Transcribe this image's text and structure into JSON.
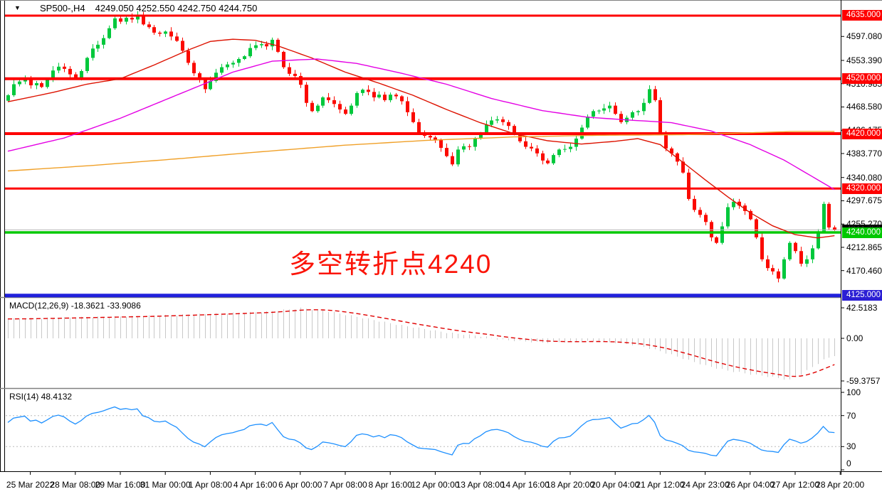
{
  "header": {
    "dropdown_icon": "▼",
    "symbol_period": "SP500-,H4",
    "ohlc": "4249.050 4252.550 4242.750 4244.750"
  },
  "annotation": {
    "text": "多空转折点4240",
    "color": "#fb1408"
  },
  "colors": {
    "candle_up": "#00c83c",
    "candle_down": "#fb0a00",
    "ma_fast": "#dd1200",
    "ma_mid": "#e400e4",
    "ma_slow": "#f0a028",
    "hline_red": "#fe0000",
    "hline_green": "#00c800",
    "hline_blue": "#2121dc",
    "current_price_line": "#b8b8b8",
    "macd_histogram": "#c8c8c8",
    "macd_signal": "#e00000",
    "rsi_line": "#1e90ff",
    "rsi_level": "#bbbbbb",
    "frame": "#000000",
    "separator": "#808080"
  },
  "price_axis": {
    "ticks": [
      {
        "label": "4597.080",
        "price": 4597.08
      },
      {
        "label": "4553.390",
        "price": 4553.39
      },
      {
        "label": "4510.985",
        "price": 4510.985
      },
      {
        "label": "4468.580",
        "price": 4468.58
      },
      {
        "label": "4426.175",
        "price": 4426.175
      },
      {
        "label": "4383.770",
        "price": 4383.77
      },
      {
        "label": "4340.080",
        "price": 4340.08
      },
      {
        "label": "4297.675",
        "price": 4297.675
      },
      {
        "label": "4255.270",
        "price": 4255.27
      },
      {
        "label": "4212.865",
        "price": 4212.865
      },
      {
        "label": "4170.460",
        "price": 4170.46
      }
    ],
    "badges": [
      {
        "label": "4635.000",
        "price": 4635,
        "bg": "#fe0000",
        "fg": "#ffffff"
      },
      {
        "label": "4520.000",
        "price": 4520,
        "bg": "#fe0000",
        "fg": "#ffffff"
      },
      {
        "label": "4420.000",
        "price": 4420,
        "bg": "#fe0000",
        "fg": "#ffffff"
      },
      {
        "label": "4320.000",
        "price": 4320,
        "bg": "#fe0000",
        "fg": "#ffffff"
      },
      {
        "label": "4244.750",
        "price": 4244.75,
        "bg": "#000000",
        "fg": "#262626"
      },
      {
        "label": "4240.000",
        "price": 4240,
        "bg": "#00c800",
        "fg": "#ffffff"
      },
      {
        "label": "4125.000",
        "price": 4125,
        "bg": "#2b1fd4",
        "fg": "#ffffff"
      }
    ]
  },
  "hlines": [
    {
      "price": 4635,
      "color": "#fe0000",
      "w": 3
    },
    {
      "price": 4520,
      "color": "#fe0000",
      "w": 4
    },
    {
      "price": 4420,
      "color": "#fe0000",
      "w": 4
    },
    {
      "price": 4320,
      "color": "#fe0000",
      "w": 3
    },
    {
      "price": 4240,
      "color": "#00c800",
      "w": 3.5
    },
    {
      "price": 4125,
      "color": "#2121dc",
      "w": 5
    },
    {
      "price": 4244.75,
      "color": "#b8b8b8",
      "w": 1
    }
  ],
  "time_axis": {
    "labels": [
      "25 Mar 2022",
      "28 Mar 08:00",
      "29 Mar 16:00",
      "31 Mar 00:00",
      "1 Apr 08:00",
      "4 Apr 16:00",
      "6 Apr 00:00",
      "7 Apr 08:00",
      "8 Apr 16:00",
      "12 Apr 00:00",
      "13 Apr 08:00",
      "14 Apr 16:00",
      "18 Apr 20:00",
      "20 Apr 04:00",
      "21 Apr 12:00",
      "24 Apr 23:00",
      "26 Apr 04:00",
      "27 Apr 12:00",
      "28 Apr 20:00"
    ]
  },
  "indicators": {
    "macd": {
      "label": "MACD(12,26,9) -18.3621 -33.9086",
      "axis": [
        {
          "label": "42.5183",
          "v": 42.5183
        },
        {
          "label": "0.00",
          "v": 0
        },
        {
          "label": "-59.3757",
          "v": -59.3757
        }
      ],
      "values_shown": {
        "macd": -18.3621,
        "signal": -33.9086
      }
    },
    "rsi": {
      "label": "RSI(14) 48.4132",
      "axis": [
        {
          "label": "100",
          "v": 100
        },
        {
          "label": "70",
          "v": 70
        },
        {
          "label": "30",
          "v": 30
        },
        {
          "label": "0",
          "v": 0
        }
      ],
      "levels": [
        70,
        30
      ],
      "value_shown": 48.4132
    }
  },
  "chart_data": {
    "type": "candlestick",
    "symbol": "SP500-",
    "timeframe": "H4",
    "current_price": 4244.75,
    "closes": [
      4490,
      4510,
      4515,
      4520,
      4508,
      4512,
      4505,
      4518,
      4535,
      4542,
      4538,
      4528,
      4520,
      4534,
      4558,
      4575,
      4582,
      4594,
      4612,
      4630,
      4624,
      4631,
      4628,
      4636,
      4619,
      4614,
      4604,
      4602,
      4606,
      4597,
      4589,
      4571,
      4549,
      4530,
      4519,
      4501,
      4516,
      4531,
      4541,
      4546,
      4549,
      4556,
      4561,
      4576,
      4581,
      4583,
      4579,
      4591,
      4569,
      4541,
      4529,
      4525,
      4509,
      4476,
      4461,
      4471,
      4486,
      4481,
      4474,
      4464,
      4456,
      4471,
      4494,
      4500,
      4496,
      4486,
      4491,
      4481,
      4491,
      4488,
      4479,
      4459,
      4441,
      4421,
      4416,
      4413,
      4409,
      4394,
      4379,
      4364,
      4391,
      4397,
      4396,
      4411,
      4421,
      4436,
      4444,
      4446,
      4441,
      4434,
      4419,
      4406,
      4396,
      4393,
      4384,
      4371,
      4366,
      4381,
      4391,
      4392,
      4396,
      4411,
      4431,
      4451,
      4461,
      4462,
      4466,
      4471,
      4456,
      4441,
      4449,
      4459,
      4461,
      4476,
      4501,
      4481,
      4421,
      4393,
      4384,
      4369,
      4349,
      4301,
      4281,
      4272,
      4259,
      4231,
      4221,
      4251,
      4286,
      4296,
      4289,
      4279,
      4264,
      4231,
      4191,
      4175,
      4169,
      4156,
      4191,
      4221,
      4206,
      4183,
      4191,
      4211,
      4241,
      4292,
      4249.05,
      4244.75
    ],
    "rsi_warmup_closes": [
      4460,
      4450,
      4455,
      4460,
      4465,
      4461,
      4465,
      4480,
      4500,
      4510,
      4515,
      4511,
      4500,
      4490,
      4480,
      4470,
      4460,
      4456,
      4460,
      4470
    ],
    "moving_averages": [
      {
        "name": "ma-fast-red",
        "color": "#dd1200",
        "points": [
          [
            0,
            4478
          ],
          [
            8,
            4495
          ],
          [
            14,
            4510
          ],
          [
            20,
            4520
          ],
          [
            26,
            4545
          ],
          [
            32,
            4572
          ],
          [
            36,
            4588
          ],
          [
            40,
            4592
          ],
          [
            44,
            4590
          ],
          [
            48,
            4580
          ],
          [
            54,
            4558
          ],
          [
            60,
            4532
          ],
          [
            66,
            4512
          ],
          [
            72,
            4490
          ],
          [
            78,
            4464
          ],
          [
            84,
            4440
          ],
          [
            90,
            4420
          ],
          [
            96,
            4407
          ],
          [
            102,
            4401
          ],
          [
            108,
            4406
          ],
          [
            112,
            4411
          ],
          [
            116,
            4400
          ],
          [
            120,
            4368
          ],
          [
            124,
            4336
          ],
          [
            128,
            4305
          ],
          [
            132,
            4276
          ],
          [
            136,
            4252
          ],
          [
            140,
            4236
          ],
          [
            144,
            4230
          ],
          [
            147,
            4234
          ]
        ]
      },
      {
        "name": "ma-mid-magenta",
        "color": "#e400e4",
        "points": [
          [
            0,
            4388
          ],
          [
            10,
            4412
          ],
          [
            20,
            4448
          ],
          [
            30,
            4490
          ],
          [
            40,
            4532
          ],
          [
            47,
            4552
          ],
          [
            55,
            4556
          ],
          [
            62,
            4548
          ],
          [
            70,
            4530
          ],
          [
            78,
            4510
          ],
          [
            86,
            4484
          ],
          [
            95,
            4462
          ],
          [
            103,
            4450
          ],
          [
            110,
            4445
          ],
          [
            118,
            4440
          ],
          [
            125,
            4425
          ],
          [
            132,
            4400
          ],
          [
            138,
            4372
          ],
          [
            142,
            4348
          ],
          [
            147,
            4318
          ]
        ]
      },
      {
        "name": "ma-slow-orange",
        "color": "#f0a028",
        "points": [
          [
            0,
            4352
          ],
          [
            15,
            4362
          ],
          [
            30,
            4374
          ],
          [
            45,
            4387
          ],
          [
            60,
            4399
          ],
          [
            75,
            4408
          ],
          [
            90,
            4414
          ],
          [
            105,
            4417
          ],
          [
            120,
            4418
          ],
          [
            130,
            4421
          ],
          [
            140,
            4424
          ],
          [
            147,
            4424
          ]
        ]
      }
    ],
    "macd_points": [
      [
        0,
        27
      ],
      [
        12,
        29
      ],
      [
        24,
        31
      ],
      [
        36,
        34
      ],
      [
        46,
        37
      ],
      [
        52,
        42
      ],
      [
        56,
        39
      ],
      [
        62,
        30
      ],
      [
        70,
        18
      ],
      [
        78,
        8
      ],
      [
        84,
        3
      ],
      [
        88,
        -2
      ],
      [
        95,
        -6
      ],
      [
        100,
        -5
      ],
      [
        104,
        -4
      ],
      [
        108,
        -6
      ],
      [
        112,
        -10
      ],
      [
        116,
        -18
      ],
      [
        120,
        -28
      ],
      [
        124,
        -38
      ],
      [
        128,
        -45
      ],
      [
        132,
        -50
      ],
      [
        136,
        -54
      ],
      [
        139,
        -58
      ],
      [
        141,
        -50
      ],
      [
        143,
        -40
      ],
      [
        145,
        -30
      ],
      [
        147,
        -24
      ]
    ]
  }
}
